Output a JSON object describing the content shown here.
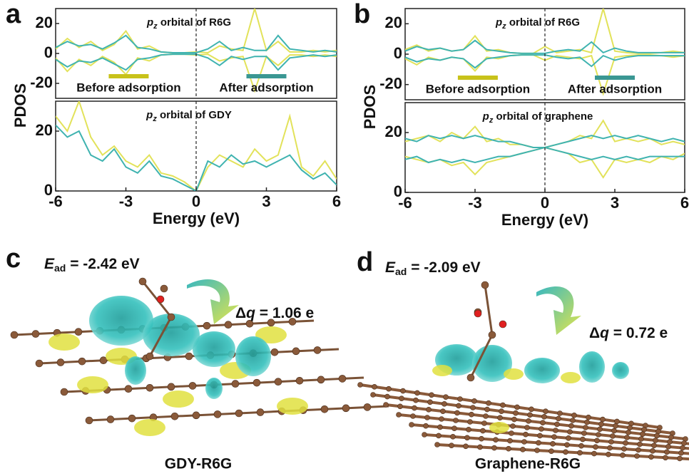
{
  "chart_data": [
    {
      "type": "line",
      "panel": "a",
      "title_italic": "p",
      "title_sub": "z",
      "title": " orbital of R6G",
      "ylabel": "PDOS",
      "x": [
        -6,
        -5.5,
        -5,
        -4.5,
        -4,
        -3.5,
        -3,
        -2.5,
        -2,
        -1.5,
        -1,
        -0.5,
        0,
        0.5,
        1,
        1.5,
        2,
        2.5,
        3,
        3.5,
        4,
        4.5,
        5,
        5.5,
        6
      ],
      "series": [
        {
          "name": "Before adsorption",
          "color": "#e2e25a",
          "values": [
            3,
            10,
            4,
            8,
            2,
            6,
            15,
            3,
            5,
            1,
            0.5,
            0.5,
            1,
            0.5,
            5,
            3,
            2,
            30,
            2,
            8,
            1,
            1,
            2,
            1,
            2
          ]
        },
        {
          "name": "After adsorption",
          "color": "#3fb3b0",
          "values": [
            4,
            8,
            5,
            6,
            3,
            7,
            12,
            4,
            3,
            1,
            0.5,
            0.5,
            0.5,
            3,
            8,
            2,
            4,
            2,
            2,
            12,
            3,
            2,
            1,
            2,
            1
          ]
        },
        {
          "color": "#e2e25a",
          "values": [
            -3,
            -12,
            -4,
            -8,
            -2,
            -6,
            -14,
            -3,
            -5,
            -1,
            -0.5,
            -0.5,
            -1,
            -0.5,
            -5,
            -3,
            -2,
            -25,
            -2,
            -8,
            -1,
            -1,
            -2,
            -1,
            -2
          ]
        },
        {
          "color": "#3fb3b0",
          "values": [
            -4,
            -9,
            -5,
            -6,
            -3,
            -7,
            -11,
            -4,
            -3,
            -1,
            -0.5,
            -0.5,
            -0.5,
            -3,
            -8,
            -2,
            -4,
            -2,
            -2,
            -11,
            -3,
            -2,
            -1,
            -2,
            -1
          ]
        }
      ],
      "legend_colors": [
        "#c8c21a",
        "#3a9793"
      ],
      "xlim": [
        -6,
        6
      ],
      "ylim": [
        -30,
        30
      ],
      "yticks": [
        20,
        0,
        -20
      ],
      "vline": 0
    },
    {
      "type": "line",
      "title_italic": "p",
      "title_sub": "z",
      "title": " orbital of GDY",
      "xlabel": "Energy (eV)",
      "x": [
        -6,
        -5.5,
        -5,
        -4.5,
        -4,
        -3.5,
        -3,
        -2.5,
        -2,
        -1.5,
        -1,
        -0.5,
        0,
        0.5,
        1,
        1.5,
        2,
        2.5,
        3,
        3.5,
        4,
        4.5,
        5,
        5.5,
        6
      ],
      "series": [
        {
          "color": "#e2e25a",
          "values": [
            25,
            20,
            30,
            18,
            12,
            15,
            10,
            8,
            12,
            6,
            5,
            3,
            0,
            8,
            12,
            10,
            8,
            14,
            10,
            12,
            25,
            8,
            5,
            10,
            4
          ]
        },
        {
          "color": "#3fb3b0",
          "values": [
            22,
            18,
            20,
            12,
            10,
            14,
            8,
            6,
            10,
            5,
            4,
            2,
            0,
            10,
            8,
            12,
            9,
            10,
            8,
            10,
            12,
            7,
            4,
            6,
            2
          ]
        }
      ],
      "xlim": [
        -6,
        6
      ],
      "ylim": [
        0,
        30
      ],
      "yticks": [
        20,
        0
      ],
      "xticks": [
        -6,
        -3,
        0,
        3,
        6
      ],
      "vline": 0
    },
    {
      "type": "line",
      "panel": "b",
      "title_italic": "p",
      "title_sub": "z",
      "title": " orbital of R6G",
      "ylabel": "PDOS",
      "x": [
        -6,
        -5.5,
        -5,
        -4.5,
        -4,
        -3.5,
        -3,
        -2.5,
        -2,
        -1.5,
        -1,
        -0.5,
        0,
        0.5,
        1,
        1.5,
        2,
        2.5,
        3,
        3.5,
        4,
        4.5,
        5,
        5.5,
        6
      ],
      "series": [
        {
          "name": "Before adsorption",
          "color": "#e2e25a",
          "values": [
            3,
            6,
            2,
            4,
            2,
            3,
            12,
            2,
            3,
            1,
            0.5,
            0.5,
            5,
            1,
            2,
            3,
            1,
            30,
            2,
            1,
            0.5,
            0.5,
            1,
            2,
            1
          ]
        },
        {
          "name": "After adsorption",
          "color": "#3fb3b0",
          "values": [
            2,
            5,
            3,
            4,
            2,
            3,
            9,
            3,
            2,
            1,
            0.5,
            0.5,
            0.5,
            2,
            3,
            2,
            8,
            1,
            4,
            2,
            1,
            1,
            1,
            1,
            1
          ]
        },
        {
          "color": "#e2e25a",
          "values": [
            -3,
            -7,
            -2,
            -4,
            -2,
            -3,
            -11,
            -2,
            -3,
            -1,
            -0.5,
            -0.5,
            -4,
            -1,
            -2,
            -3,
            -1,
            -26,
            -2,
            -1,
            -0.5,
            -0.5,
            -1,
            -2,
            -1
          ]
        },
        {
          "color": "#3fb3b0",
          "values": [
            -2,
            -5,
            -3,
            -4,
            -2,
            -3,
            -9,
            -3,
            -2,
            -1,
            -0.5,
            -0.5,
            -0.5,
            -2,
            -3,
            -2,
            -8,
            -1,
            -4,
            -2,
            -1,
            -1,
            -1,
            -1,
            -1
          ]
        }
      ],
      "legend_colors": [
        "#c8c21a",
        "#3a9793"
      ],
      "xlim": [
        -6,
        6
      ],
      "ylim": [
        -30,
        30
      ],
      "yticks": [
        20,
        0,
        -20
      ],
      "vline": 0
    },
    {
      "type": "line",
      "title_italic": "p",
      "title_sub": "z",
      "title": " orbital of graphene",
      "xlabel": "Energy (eV)",
      "x": [
        -6,
        -5.5,
        -5,
        -4.5,
        -4,
        -3.5,
        -3,
        -2.5,
        -2,
        -1.5,
        -1,
        -0.5,
        0,
        0.5,
        1,
        1.5,
        2,
        2.5,
        3,
        3.5,
        4,
        4.5,
        5,
        5.5,
        6
      ],
      "series": [
        {
          "color": "#e2e25a",
          "values": [
            17,
            18,
            19,
            17,
            20,
            18,
            22,
            17,
            18,
            16,
            16,
            15,
            15,
            16,
            17,
            19,
            18,
            24,
            17,
            18,
            17,
            18,
            16,
            17,
            16
          ]
        },
        {
          "color": "#3fb3b0",
          "values": [
            18,
            17,
            19,
            18,
            19,
            18,
            19,
            18,
            17,
            17,
            16,
            15,
            15,
            16,
            17,
            18,
            19,
            18,
            19,
            18,
            19,
            18,
            17,
            18,
            17
          ]
        },
        {
          "color": "#e2e25a",
          "values": [
            12,
            11,
            10,
            11,
            9,
            10,
            6,
            10,
            11,
            12,
            13,
            14,
            15,
            14,
            13,
            10,
            11,
            5,
            11,
            10,
            11,
            10,
            12,
            11,
            13
          ]
        },
        {
          "color": "#3fb3b0",
          "values": [
            11,
            12,
            10,
            11,
            10,
            11,
            10,
            11,
            12,
            12,
            13,
            14,
            15,
            14,
            13,
            12,
            11,
            12,
            11,
            12,
            11,
            12,
            12,
            12,
            12
          ]
        }
      ],
      "xlim": [
        -6,
        6
      ],
      "ylim": [
        0,
        30
      ],
      "yticks": [
        20,
        0
      ],
      "xticks": [
        -6,
        -3,
        0,
        3,
        6
      ],
      "vline": 0
    }
  ],
  "structures": [
    {
      "panel": "c",
      "energy_symbol": "E",
      "energy_sub": "ad",
      "energy": " = -2.42 eV",
      "charge_symbol": "Δ",
      "charge_var": "q",
      "charge": " = 1.06 e",
      "caption": "GDY-R6G"
    },
    {
      "panel": "d",
      "energy_symbol": "E",
      "energy_sub": "ad",
      "energy": " = -2.09 eV",
      "charge_symbol": "Δ",
      "charge_var": "q",
      "charge": " = 0.72 e",
      "caption": "Graphene-R6G"
    }
  ]
}
